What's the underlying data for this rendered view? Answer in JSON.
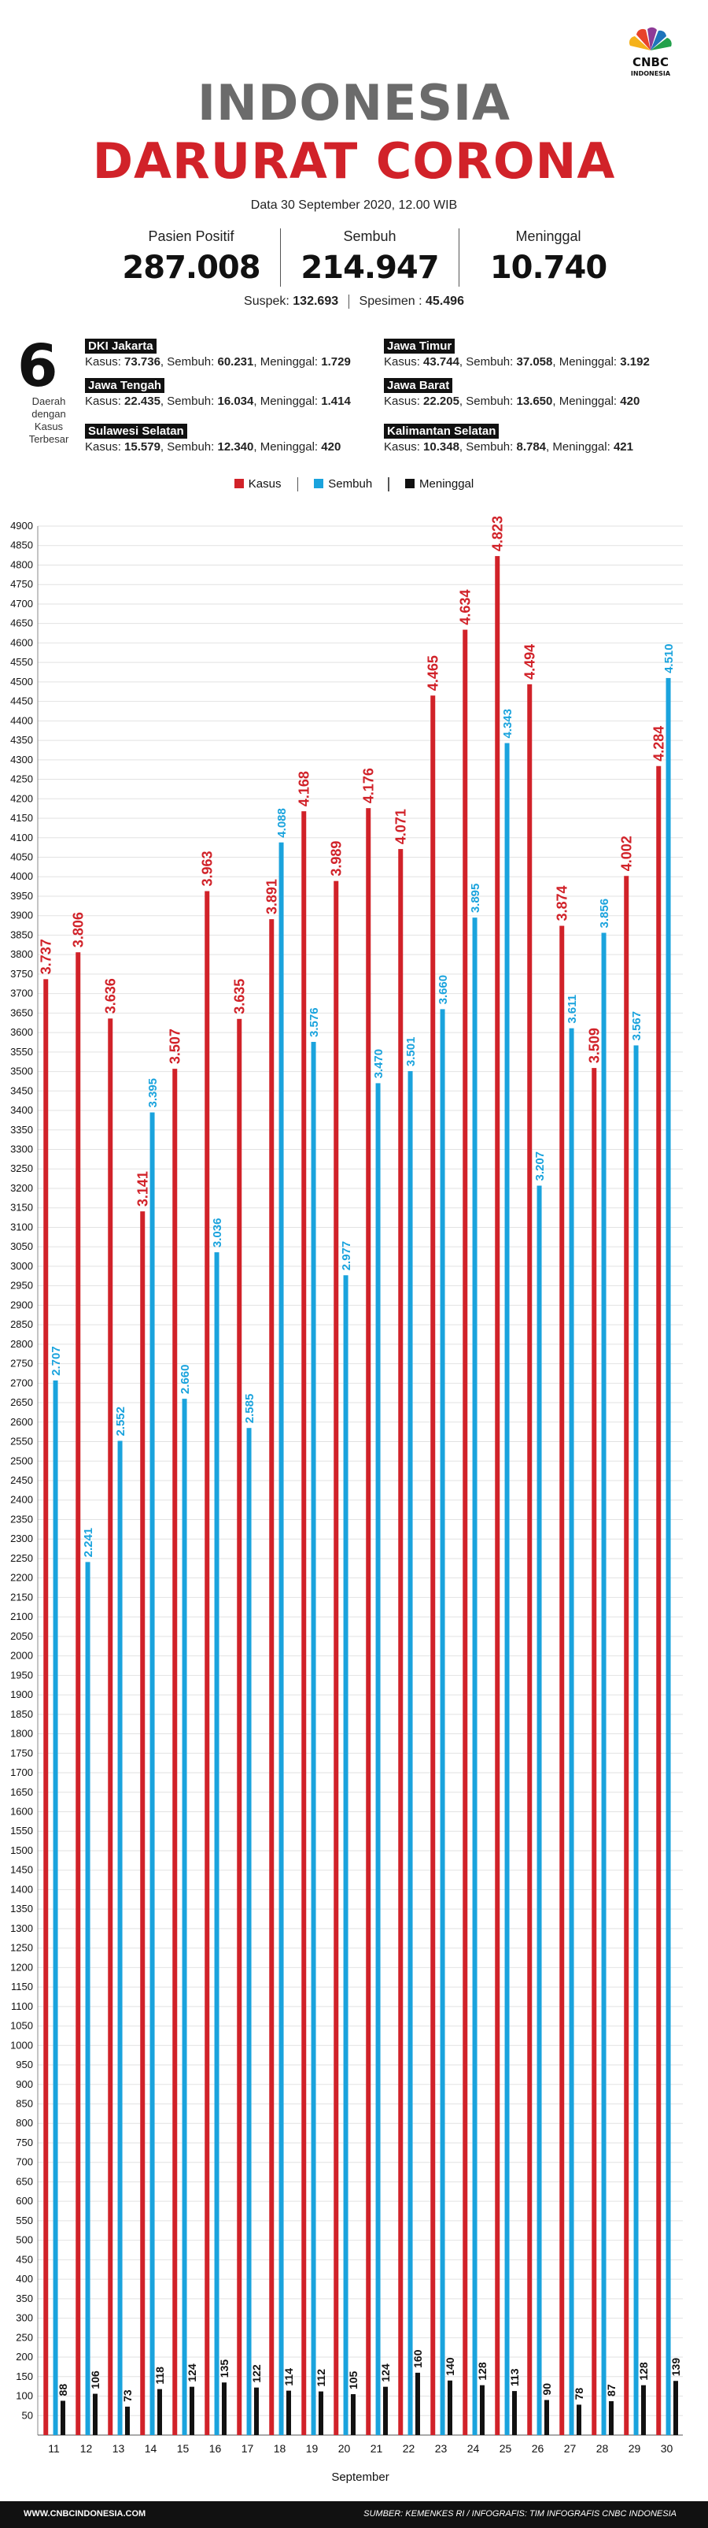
{
  "brand": {
    "logo_text": "CNBC",
    "logo_sub": "INDONESIA"
  },
  "header": {
    "title_line1": "INDONESIA",
    "title_line2": "DARURAT CORONA",
    "date": "Data 30 September 2020, 12.00 WIB"
  },
  "stats": [
    {
      "label": "Pasien Positif",
      "value": "287.008"
    },
    {
      "label": "Sembuh",
      "value": "214.947"
    },
    {
      "label": "Meninggal",
      "value": "10.740"
    }
  ],
  "sub": {
    "suspek_label": "Suspek:",
    "suspek_value": "132.693",
    "spesimen_label": "Spesimen :",
    "spesimen_value": "45.496"
  },
  "regions_box": {
    "count": "6",
    "label_line1": "Daerah",
    "label_line2": "dengan",
    "label_line3": "Kasus",
    "label_line4": "Terbesar"
  },
  "regions": [
    {
      "name": "DKI Jakarta",
      "kasus": "73.736",
      "sembuh": "60.231",
      "meninggal": "1.729"
    },
    {
      "name": "Jawa Timur",
      "kasus": "43.744",
      "sembuh": "37.058",
      "meninggal": "3.192"
    },
    {
      "name": "Jawa Tengah",
      "kasus": "22.435",
      "sembuh": "16.034",
      "meninggal": "1.414"
    },
    {
      "name": "Jawa Barat",
      "kasus": "22.205",
      "sembuh": "13.650",
      "meninggal": "420"
    },
    {
      "name": "Sulawesi Selatan",
      "kasus": "15.579",
      "sembuh": "12.340",
      "meninggal": "420"
    },
    {
      "name": "Kalimantan Selatan",
      "kasus": "10.348",
      "sembuh": "8.784",
      "meninggal": "421"
    }
  ],
  "region_labels": {
    "kasus": "Kasus:",
    "sembuh": "Sembuh:",
    "meninggal": "Meninggal:"
  },
  "legend": [
    {
      "name": "Kasus",
      "color": "#d12229"
    },
    {
      "name": "Sembuh",
      "color": "#1aa3dd"
    },
    {
      "name": "Meninggal",
      "color": "#111111"
    }
  ],
  "chart_data": {
    "type": "bar",
    "xlabel": "September",
    "ylabel": "",
    "ylim": [
      0,
      4900
    ],
    "ytick_step": 50,
    "categories": [
      "11",
      "12",
      "13",
      "14",
      "15",
      "16",
      "17",
      "18",
      "19",
      "20",
      "21",
      "22",
      "23",
      "24",
      "25",
      "26",
      "27",
      "28",
      "29",
      "30"
    ],
    "series": [
      {
        "name": "Kasus",
        "color": "#d12229",
        "values": [
          3737,
          3806,
          3636,
          3141,
          3507,
          3963,
          3635,
          3891,
          4168,
          3989,
          4176,
          4071,
          4465,
          4634,
          4823,
          4494,
          3874,
          3509,
          4002,
          4284
        ],
        "labels": [
          "3.737",
          "3.806",
          "3.636",
          "3.141",
          "3.507",
          "3.963",
          "3.635",
          "3.891",
          "4.168",
          "3.989",
          "4.176",
          "4.071",
          "4.465",
          "4.634",
          "4.823",
          "4.494",
          "3.874",
          "3.509",
          "4.002",
          "4.284"
        ]
      },
      {
        "name": "Sembuh",
        "color": "#1aa3dd",
        "values": [
          2707,
          2241,
          2552,
          3395,
          2660,
          3036,
          2585,
          4088,
          3576,
          2977,
          3470,
          3501,
          3660,
          3895,
          4343,
          3207,
          3611,
          3856,
          3567,
          4510
        ],
        "labels": [
          "2.707",
          "2.241",
          "2.552",
          "3.395",
          "2.660",
          "3.036",
          "2.585",
          "4.088",
          "3.576",
          "2.977",
          "3.470",
          "3.501",
          "3.660",
          "3.895",
          "4.343",
          "3.207",
          "3.611",
          "3.856",
          "3.567",
          "4.510"
        ]
      },
      {
        "name": "Meninggal",
        "color": "#111111",
        "values": [
          88,
          106,
          73,
          118,
          124,
          135,
          122,
          114,
          112,
          105,
          124,
          160,
          140,
          128,
          113,
          90,
          78,
          87,
          128,
          139
        ],
        "labels": [
          "88",
          "106",
          "73",
          "118",
          "124",
          "135",
          "122",
          "114",
          "112",
          "105",
          "124",
          "160",
          "140",
          "128",
          "113",
          "90",
          "78",
          "87",
          "128",
          "139"
        ]
      }
    ]
  },
  "footer": {
    "website": "WWW.CNBCINDONESIA.COM",
    "source": "SUMBER: KEMENKES RI / INFOGRAFIS: TIM INFOGRAFIS CNBC INDONESIA"
  }
}
